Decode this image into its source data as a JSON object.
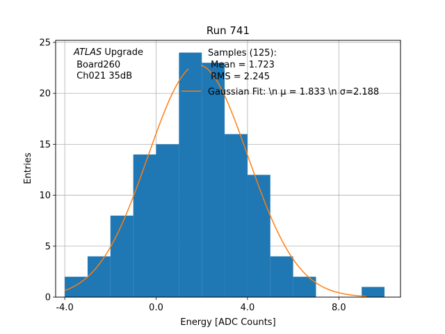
{
  "chart_data": {
    "type": "bar",
    "title": "Run 741",
    "xlabel": "Energy [ADC Counts]",
    "ylabel": "Entries",
    "xlim": [
      -4.4,
      10.7
    ],
    "ylim": [
      0,
      25.2
    ],
    "x_ticks": [
      -4,
      0,
      4,
      8
    ],
    "x_tick_labels": [
      "-4.0",
      "0.0",
      "4.0",
      "8.0"
    ],
    "y_ticks": [
      0,
      5,
      10,
      15,
      20,
      25
    ],
    "y_tick_labels": [
      "0",
      "5",
      "10",
      "15",
      "20",
      "25"
    ],
    "grid": true,
    "histogram": {
      "bin_edges": [
        -4,
        -3,
        -2,
        -1,
        0,
        1,
        2,
        3,
        4,
        5,
        6,
        7,
        8,
        9,
        10
      ],
      "counts": [
        2,
        4,
        8,
        14,
        15,
        24,
        23,
        16,
        12,
        4,
        2,
        0,
        0,
        1
      ],
      "color": "#1f77b4"
    },
    "fit": {
      "type": "gaussian",
      "mu": 1.833,
      "sigma": 2.188,
      "amplitude": 22.8,
      "x_range": [
        -4,
        9.2
      ],
      "color": "#ff7f0e"
    },
    "annotation": {
      "italic": "ATLAS",
      "rest": " Upgrade",
      "line2": " Board260",
      "line3": " Ch021 35dB"
    },
    "legend": {
      "placement": "top-right",
      "hist_label_lines": [
        "Samples (125):",
        " Mean = 1.723",
        " RMS = 2.245"
      ],
      "fit_label": "Gaussian Fit: \\n μ = 1.833 \\n σ=2.188"
    }
  }
}
